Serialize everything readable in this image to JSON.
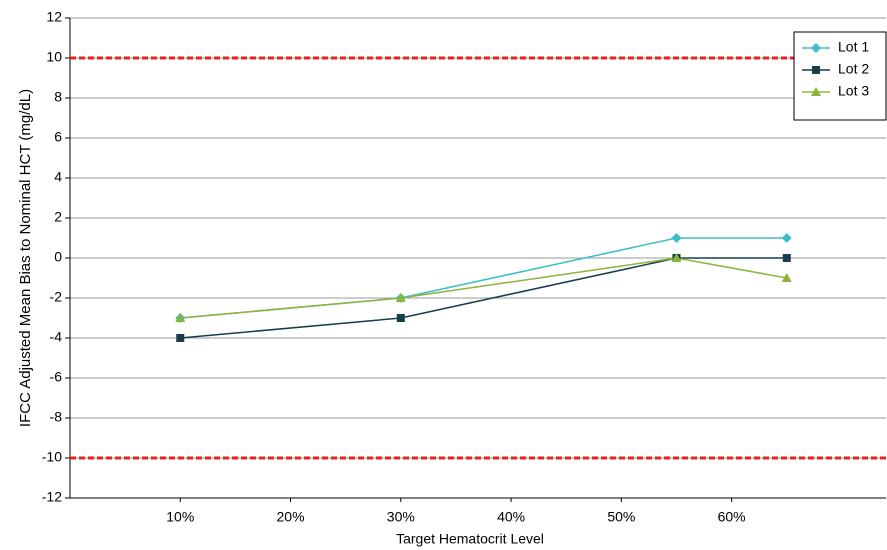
{
  "chart_data": {
    "type": "line",
    "x_label": "Target Hematocrit Level",
    "y_label": "IFCC Adjusted Mean Bias to Nominal HCT (mg/dL)",
    "x": [
      10,
      30,
      55,
      65
    ],
    "series": [
      {
        "name": "Lot 1",
        "color": "#3dbdc8",
        "marker": "diamond",
        "values": [
          -3,
          -2,
          1,
          1
        ]
      },
      {
        "name": "Lot 2",
        "color": "#163f4a",
        "marker": "square",
        "values": [
          -4,
          -3,
          0,
          0
        ]
      },
      {
        "name": "Lot 3",
        "color": "#8cb33a",
        "marker": "triangle",
        "values": [
          -3,
          -2,
          0,
          -1
        ]
      }
    ],
    "xlim": [
      0,
      74
    ],
    "xticks": [
      {
        "value": 10,
        "label": "10%"
      },
      {
        "value": 20,
        "label": "20%"
      },
      {
        "value": 30,
        "label": "30%"
      },
      {
        "value": 40,
        "label": "40%"
      },
      {
        "value": 50,
        "label": "50%"
      },
      {
        "value": 60,
        "label": "60%"
      }
    ],
    "ylim": [
      -12,
      12
    ],
    "yticks": [
      -12,
      -10,
      -8,
      -6,
      -4,
      -2,
      0,
      2,
      4,
      6,
      8,
      10,
      12
    ],
    "reference_lines": [
      10,
      -10
    ],
    "reference_color": "#e8221f",
    "grid": true,
    "legend": "upper right"
  }
}
